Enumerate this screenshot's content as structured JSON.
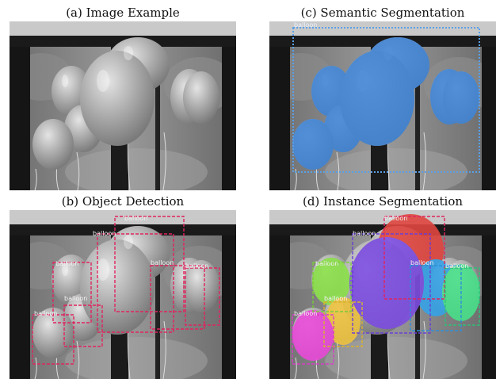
{
  "captions": {
    "a": "(a) Image Example",
    "b": "(b) Object Detection",
    "c": "(c) Semantic Segmentation",
    "d": "(d) Instance Segmentation"
  },
  "class_label": "balloon",
  "colors": {
    "semantic_fill": "#3f84d6",
    "semantic_box": "#5aa0e8",
    "detection_box": "#e0245e",
    "instance": [
      "#e0463f",
      "#7c4de0",
      "#36a2e6",
      "#49e08a",
      "#8be04a",
      "#eec340",
      "#e84ad8"
    ]
  }
}
